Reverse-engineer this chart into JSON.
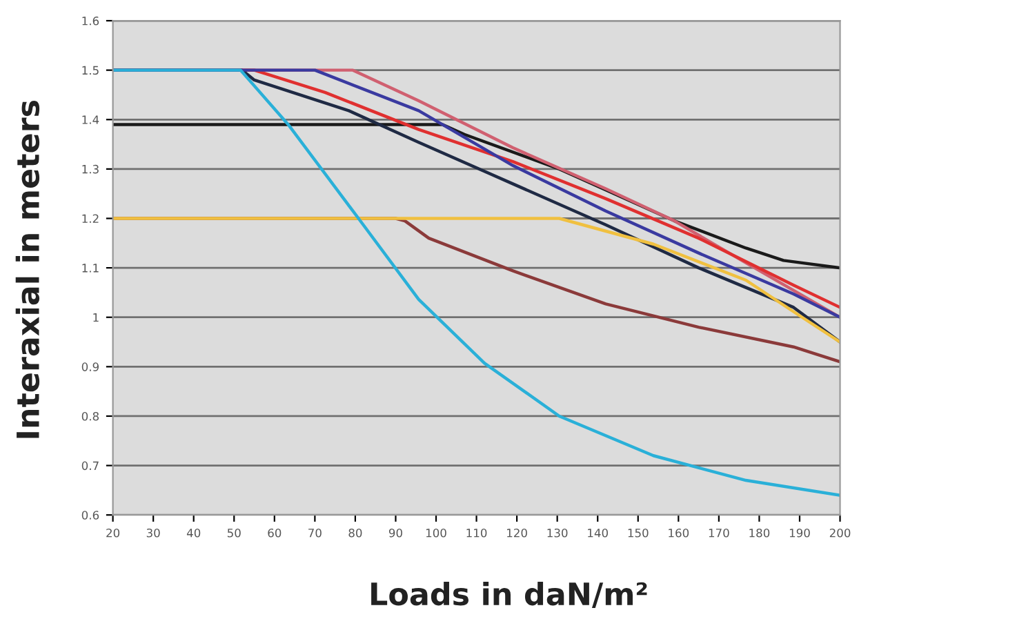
{
  "chart_data": {
    "type": "line",
    "xlabel": "Loads in daN/m²",
    "ylabel": "Interaxial in meters",
    "xlim": [
      20,
      200
    ],
    "xticks": [
      20,
      30,
      40,
      50,
      60,
      70,
      80,
      90,
      100,
      110,
      120,
      130,
      140,
      150,
      160,
      170,
      180,
      190,
      200
    ],
    "ylim": [
      0.6,
      1.6
    ],
    "yticks": [
      0.6,
      0.7,
      0.8,
      0.9,
      1,
      1.1,
      1.2,
      1.3,
      1.4,
      1.5,
      1.6
    ],
    "grid": "y",
    "marker": "none",
    "line_style": "solid",
    "series": [
      {
        "color": "#1a1a1a",
        "x": [
          20,
          101.6,
          107,
          130.5,
          159,
          176.7,
          186,
          200
        ],
        "values": [
          1.39,
          1.39,
          1.37,
          1.3,
          1.195,
          1.14,
          1.115,
          1.1
        ]
      },
      {
        "color": "#d06070",
        "x": [
          20,
          79.4,
          95.7,
          119,
          142,
          159,
          176.7,
          200
        ],
        "values": [
          1.5,
          1.5,
          1.438,
          1.343,
          1.26,
          1.195,
          1.11,
          1.0
        ]
      },
      {
        "color": "#e03030",
        "x": [
          20,
          55,
          72.5,
          95.7,
          119,
          142,
          165,
          188.5,
          200
        ],
        "values": [
          1.5,
          1.5,
          1.455,
          1.38,
          1.315,
          1.24,
          1.16,
          1.065,
          1.02
        ]
      },
      {
        "color": "#1f2a44",
        "x": [
          20,
          52,
          55,
          78.4,
          95.7,
          119,
          142,
          165,
          188.5,
          200
        ],
        "values": [
          1.5,
          1.5,
          1.48,
          1.418,
          1.354,
          1.27,
          1.187,
          1.1,
          1.02,
          0.95
        ]
      },
      {
        "color": "#8b3a3a",
        "x": [
          20,
          90,
          92.3,
          98.2,
          119,
          142,
          165,
          188.5,
          200
        ],
        "values": [
          1.2,
          1.2,
          1.195,
          1.16,
          1.094,
          1.027,
          0.98,
          0.94,
          0.91
        ]
      },
      {
        "color": "#3a3aa0",
        "x": [
          20,
          70,
          95.7,
          119,
          142,
          165,
          188.5,
          200
        ],
        "values": [
          1.5,
          1.5,
          1.418,
          1.307,
          1.215,
          1.13,
          1.047,
          1.0
        ]
      },
      {
        "color": "#f0c040",
        "x": [
          20,
          130.5,
          153.8,
          176.7,
          190.6,
          200
        ],
        "values": [
          1.2,
          1.2,
          1.148,
          1.075,
          1.0,
          0.95
        ]
      },
      {
        "color": "#2ab0d8",
        "x": [
          20,
          51.6,
          63.4,
          80.8,
          95.7,
          112,
          130.5,
          153.8,
          176.7,
          200
        ],
        "values": [
          1.5,
          1.5,
          1.39,
          1.2,
          1.036,
          0.907,
          0.8,
          0.72,
          0.67,
          0.64
        ]
      }
    ]
  }
}
